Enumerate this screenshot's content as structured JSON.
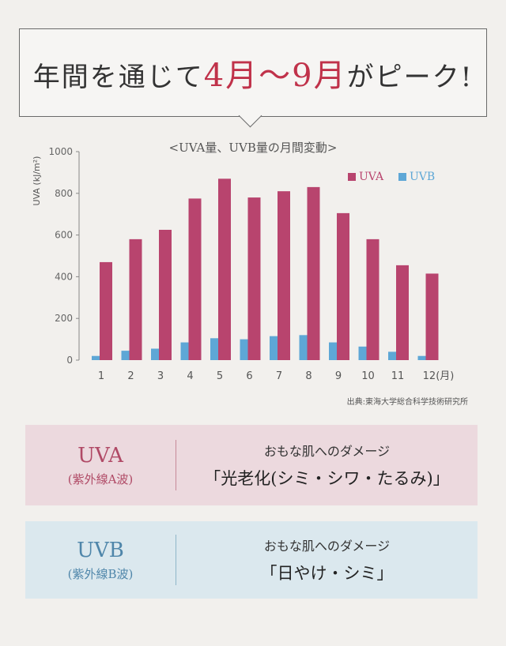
{
  "headline": {
    "part1": "年間を通じて",
    "accent": "4月〜9月",
    "part2": "がピーク!"
  },
  "chart_data": {
    "type": "bar",
    "title": "<UVA量、UVB量の月間変動>",
    "ylabel": "UVA (kJ/m²)",
    "xlabel": "",
    "ylim": [
      0,
      1000
    ],
    "yticks": [
      "0",
      "200",
      "400",
      "600",
      "800",
      "1000"
    ],
    "categories": [
      "1",
      "2",
      "3",
      "4",
      "5",
      "6",
      "7",
      "8",
      "9",
      "10",
      "11",
      "12(月)"
    ],
    "series": [
      {
        "name": "UVA",
        "color": "#b8446e",
        "values": [
          470,
          580,
          625,
          775,
          870,
          780,
          810,
          830,
          705,
          580,
          455,
          415
        ]
      },
      {
        "name": "UVB",
        "color": "#5ea7d6",
        "values": [
          20,
          45,
          55,
          85,
          105,
          100,
          115,
          120,
          85,
          65,
          40,
          20
        ]
      }
    ],
    "grid": false,
    "legend_position": "top-right",
    "source": "出典:東海大学総合科学技術研究所"
  },
  "uva_box": {
    "name": "UVA",
    "sub": "(紫外線A波)",
    "damage_label": "おもな肌へのダメージ",
    "damage_value": "「光老化(シミ・シワ・たるみ)」"
  },
  "uvb_box": {
    "name": "UVB",
    "sub": "(紫外線B波)",
    "damage_label": "おもな肌へのダメージ",
    "damage_value": "「日やけ・シミ」"
  }
}
